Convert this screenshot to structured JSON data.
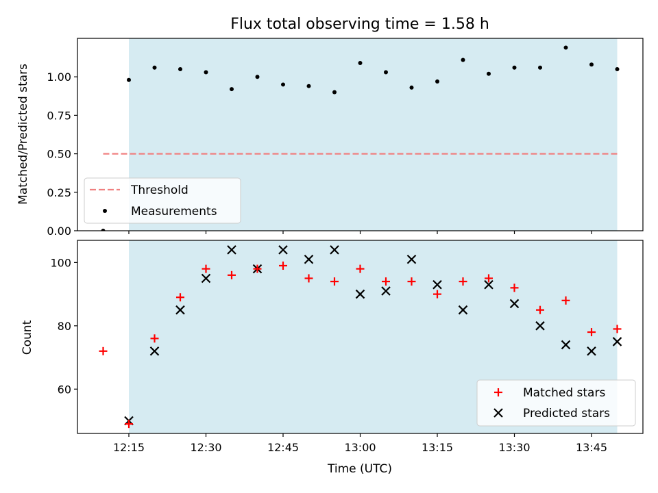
{
  "title": "Flux total observing time = 1.58 h",
  "colors": {
    "shade": "#add8e6",
    "threshold": "#f08080",
    "matched": "#ff0000",
    "predicted": "#000000",
    "measurement": "#000000"
  },
  "chart_data": [
    {
      "type": "scatter",
      "ylabel": "Matched/Predicted stars",
      "ylim": [
        0,
        1.25
      ],
      "yticks": [
        0.0,
        0.25,
        0.5,
        0.75,
        1.0
      ],
      "ytick_labels": [
        "0.00",
        "0.25",
        "0.50",
        "0.75",
        "1.00"
      ],
      "shaded_span": [
        "12:15",
        "13:50"
      ],
      "legend_placement": "lower-left",
      "threshold": {
        "name": "Threshold",
        "y": 0.5,
        "x_range": [
          "12:10",
          "13:50"
        ]
      },
      "series": [
        {
          "name": "Measurements",
          "x": [
            "12:10",
            "12:15",
            "12:20",
            "12:25",
            "12:30",
            "12:35",
            "12:40",
            "12:45",
            "12:50",
            "12:55",
            "13:00",
            "13:05",
            "13:10",
            "13:15",
            "13:20",
            "13:25",
            "13:30",
            "13:35",
            "13:40",
            "13:45",
            "13:50"
          ],
          "y": [
            0.0,
            0.98,
            1.06,
            1.05,
            1.03,
            0.92,
            1.0,
            0.95,
            0.94,
            0.9,
            1.09,
            1.03,
            0.93,
            0.97,
            1.11,
            1.02,
            1.06,
            1.06,
            1.19,
            1.08,
            1.05
          ]
        }
      ]
    },
    {
      "type": "scatter",
      "ylabel": "Count",
      "xlabel": "Time (UTC)",
      "ylim": [
        46,
        107
      ],
      "yticks": [
        60,
        80,
        100
      ],
      "ytick_labels": [
        "60",
        "80",
        "100"
      ],
      "xlim": [
        "12:05",
        "13:55"
      ],
      "xticks": [
        "12:15",
        "12:30",
        "12:45",
        "13:00",
        "13:15",
        "13:30",
        "13:45"
      ],
      "shaded_span": [
        "12:15",
        "13:50"
      ],
      "legend_placement": "lower-right",
      "series": [
        {
          "name": "Matched stars",
          "marker": "plus",
          "x": [
            "12:10",
            "12:15",
            "12:20",
            "12:25",
            "12:30",
            "12:35",
            "12:40",
            "12:45",
            "12:50",
            "12:55",
            "13:00",
            "13:05",
            "13:10",
            "13:15",
            "13:20",
            "13:25",
            "13:30",
            "13:35",
            "13:40",
            "13:45",
            "13:50"
          ],
          "y": [
            72,
            49,
            76,
            89,
            98,
            96,
            98,
            99,
            95,
            94,
            98,
            94,
            94,
            90,
            94,
            95,
            92,
            85,
            88,
            78,
            79
          ]
        },
        {
          "name": "Predicted stars",
          "marker": "x",
          "x": [
            "12:15",
            "12:20",
            "12:25",
            "12:30",
            "12:35",
            "12:40",
            "12:45",
            "12:50",
            "12:55",
            "13:00",
            "13:05",
            "13:10",
            "13:15",
            "13:20",
            "13:25",
            "13:30",
            "13:35",
            "13:40",
            "13:45",
            "13:50"
          ],
          "y": [
            50,
            72,
            85,
            95,
            104,
            98,
            104,
            101,
            104,
            90,
            91,
            101,
            93,
            85,
            93,
            87,
            80,
            74,
            72,
            75
          ]
        }
      ]
    }
  ]
}
